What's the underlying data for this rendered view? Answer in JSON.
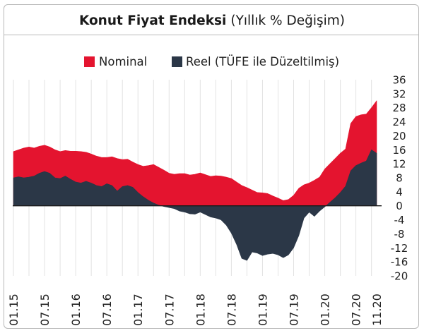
{
  "chart_data": {
    "type": "area",
    "title": "Konut Fiyat Endeksi",
    "subtitle": "(Yıllık % Değişim)",
    "x": [
      "01.15",
      "02.15",
      "03.15",
      "04.15",
      "05.15",
      "06.15",
      "07.15",
      "08.15",
      "09.15",
      "10.15",
      "11.15",
      "12.15",
      "01.16",
      "02.16",
      "03.16",
      "04.16",
      "05.16",
      "06.16",
      "07.16",
      "08.16",
      "09.16",
      "10.16",
      "11.16",
      "12.16",
      "01.17",
      "02.17",
      "03.17",
      "04.17",
      "05.17",
      "06.17",
      "07.17",
      "08.17",
      "09.17",
      "10.17",
      "11.17",
      "12.17",
      "01.18",
      "02.18",
      "03.18",
      "04.18",
      "05.18",
      "06.18",
      "07.18",
      "08.18",
      "09.18",
      "10.18",
      "11.18",
      "12.18",
      "01.19",
      "02.19",
      "03.19",
      "04.19",
      "05.19",
      "06.19",
      "07.19",
      "08.19",
      "09.19",
      "10.19",
      "11.19",
      "12.19",
      "01.20",
      "02.20",
      "03.20",
      "04.20",
      "05.20",
      "06.20",
      "07.20",
      "08.20",
      "09.20",
      "10.20",
      "11.20"
    ],
    "xticks": [
      "01.15",
      "07.15",
      "01.16",
      "07.16",
      "01.17",
      "07.17",
      "01.18",
      "07.18",
      "01.19",
      "07.19",
      "01.20",
      "07.20",
      "11.20"
    ],
    "yticks": [
      36,
      32,
      28,
      24,
      20,
      16,
      12,
      8,
      4,
      0,
      -4,
      -8,
      -12,
      -16,
      -20
    ],
    "ylim": [
      -20,
      36
    ],
    "y_axis_position": "right",
    "grid": true,
    "legend": "top",
    "series": [
      {
        "name": "Nominal",
        "color": "#e4142f",
        "values": [
          15.5,
          16.0,
          16.5,
          16.8,
          16.5,
          17.0,
          17.3,
          16.8,
          16.0,
          15.5,
          15.8,
          15.6,
          15.6,
          15.5,
          15.3,
          14.8,
          14.2,
          13.8,
          13.8,
          14.0,
          13.5,
          13.2,
          13.3,
          12.5,
          11.8,
          11.3,
          11.5,
          11.8,
          11.0,
          10.2,
          9.3,
          9.0,
          9.2,
          9.2,
          8.8,
          9.0,
          9.4,
          8.9,
          8.4,
          8.6,
          8.5,
          8.2,
          7.8,
          6.8,
          5.8,
          5.2,
          4.5,
          3.8,
          3.7,
          3.5,
          2.8,
          2.2,
          1.5,
          1.8,
          3.0,
          5.0,
          6.0,
          6.5,
          7.3,
          8.2,
          10.5,
          12.0,
          13.5,
          15.0,
          16.2,
          23.5,
          25.5,
          26.0,
          26.2,
          28.0,
          30.0
        ]
      },
      {
        "name": "Reel (TÜFE ile Düzeltilmiş)",
        "color": "#2b3747",
        "values": [
          8.0,
          8.3,
          8.0,
          8.2,
          8.5,
          9.3,
          9.8,
          9.3,
          8.0,
          7.8,
          8.5,
          7.6,
          6.8,
          6.5,
          7.0,
          6.5,
          5.8,
          5.5,
          6.3,
          5.8,
          4.2,
          5.5,
          5.8,
          5.3,
          3.8,
          2.6,
          1.6,
          0.8,
          0.2,
          -0.2,
          -0.5,
          -0.8,
          -1.5,
          -1.8,
          -2.3,
          -2.4,
          -1.8,
          -2.5,
          -3.2,
          -3.5,
          -4.0,
          -5.5,
          -7.8,
          -11.0,
          -15.0,
          -15.6,
          -13.2,
          -13.5,
          -14.2,
          -13.8,
          -13.6,
          -14.0,
          -14.8,
          -14.0,
          -12.0,
          -8.5,
          -3.5,
          -1.8,
          -3.0,
          -1.5,
          -0.3,
          1.0,
          2.3,
          3.8,
          5.6,
          10.0,
          11.5,
          12.2,
          12.8,
          16.0,
          15.0
        ]
      }
    ]
  }
}
